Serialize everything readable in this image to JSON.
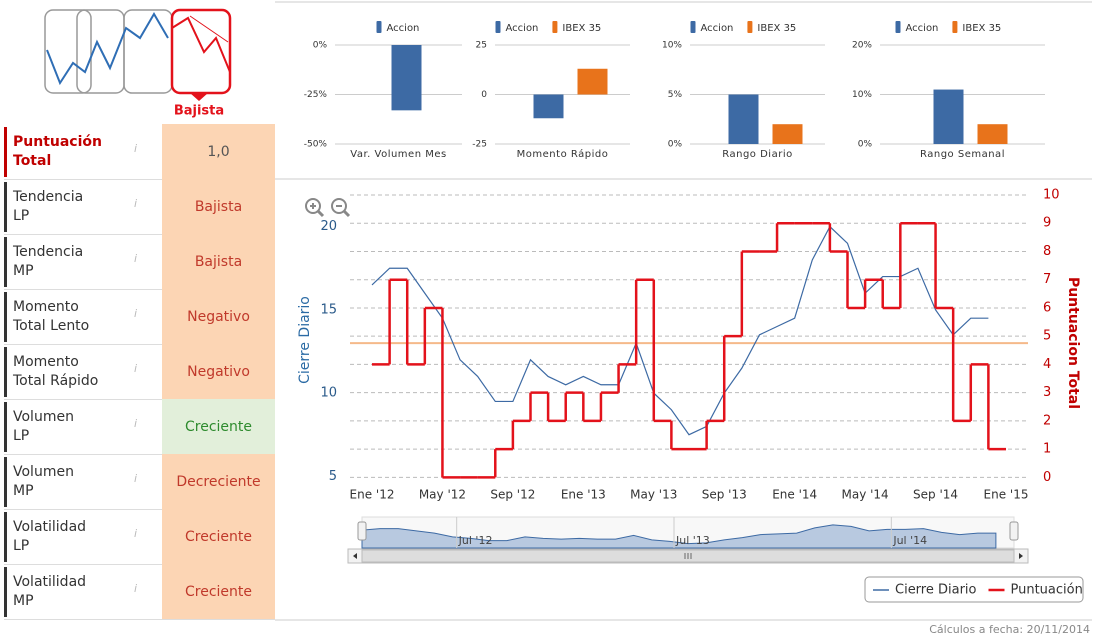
{
  "trend": {
    "label": "Bajista"
  },
  "scores": {
    "rows": [
      {
        "label": "Puntuación\nTotal",
        "value": "1,0",
        "color": "#fcd5b4",
        "label_color": "#c00000",
        "text_color": "#555555"
      },
      {
        "label": "Tendencia\nLP",
        "value": "Bajista",
        "color": "#fcd5b4",
        "label_color": "#333333",
        "text_color": "#c0392b"
      },
      {
        "label": "Tendencia\nMP",
        "value": "Bajista",
        "color": "#fcd5b4",
        "label_color": "#333333",
        "text_color": "#c0392b"
      },
      {
        "label": "Momento\nTotal Lento",
        "value": "Negativo",
        "color": "#fcd5b4",
        "label_color": "#333333",
        "text_color": "#c0392b"
      },
      {
        "label": "Momento\nTotal Rápido",
        "value": "Negativo",
        "color": "#fcd5b4",
        "label_color": "#333333",
        "text_color": "#c0392b"
      },
      {
        "label": "Volumen\nLP",
        "value": "Creciente",
        "color": "#e2efda",
        "label_color": "#333333",
        "text_color": "#2e8b2e"
      },
      {
        "label": "Volumen\nMP",
        "value": "Decreciente",
        "color": "#fcd5b4",
        "label_color": "#333333",
        "text_color": "#c0392b"
      },
      {
        "label": "Volatilidad\nLP",
        "value": "Creciente",
        "color": "#fcd5b4",
        "label_color": "#333333",
        "text_color": "#c0392b"
      },
      {
        "label": "Volatilidad\nMP",
        "value": "Creciente",
        "color": "#fcd5b4",
        "label_color": "#333333",
        "text_color": "#c0392b"
      }
    ]
  },
  "chart_data": [
    {
      "type": "bar",
      "categories": [
        "Var. Volumen Mes"
      ],
      "series": [
        {
          "name": "Accion",
          "color": "#3d6aa4",
          "values": [
            -33
          ]
        }
      ],
      "ylim": [
        -50,
        0
      ],
      "yticks": [
        {
          "value": -50,
          "label": "-50%"
        },
        {
          "value": -25,
          "label": "-25%"
        },
        {
          "value": 0,
          "label": "0%"
        }
      ]
    },
    {
      "type": "bar",
      "categories": [
        "Momento Rápido"
      ],
      "series": [
        {
          "name": "Accion",
          "color": "#3d6aa4",
          "values": [
            -12
          ]
        },
        {
          "name": "IBEX 35",
          "color": "#e8731b",
          "values": [
            13
          ]
        }
      ],
      "ylim": [
        -25,
        25
      ],
      "yticks": [
        -25,
        0,
        25
      ]
    },
    {
      "type": "bar",
      "categories": [
        "Rango Diario"
      ],
      "series": [
        {
          "name": "Accion",
          "color": "#3d6aa4",
          "values": [
            5
          ]
        },
        {
          "name": "IBEX 35",
          "color": "#e8731b",
          "values": [
            2
          ]
        }
      ],
      "ylim": [
        0,
        10
      ],
      "yticks": [
        {
          "value": 0,
          "label": "0%"
        },
        {
          "value": 5,
          "label": "5%"
        },
        {
          "value": 10,
          "label": "10%"
        }
      ]
    },
    {
      "type": "bar",
      "categories": [
        "Rango Semanal"
      ],
      "series": [
        {
          "name": "Accion",
          "color": "#3d6aa4",
          "values": [
            11
          ]
        },
        {
          "name": "IBEX 35",
          "color": "#e8731b",
          "values": [
            4
          ]
        }
      ],
      "ylim": [
        0,
        20
      ],
      "yticks": [
        {
          "value": 0,
          "label": "0%"
        },
        {
          "value": 10,
          "label": "10%"
        },
        {
          "value": 20,
          "label": "20%"
        }
      ]
    },
    {
      "type": "line",
      "y_label": "Cierre Diario",
      "y2_label": "Puntuacion Total",
      "categories": [
        "Ene '12",
        null,
        null,
        null,
        "May '12",
        null,
        null,
        null,
        "Sep '12",
        null,
        null,
        null,
        "Ene '13",
        null,
        null,
        null,
        "May '13",
        null,
        null,
        null,
        "Sep '13",
        null,
        null,
        null,
        "Ene '14",
        null,
        null,
        null,
        "May '14",
        null,
        null,
        null,
        "Sep '14",
        null,
        null,
        null,
        "Ene '15"
      ],
      "series": [
        {
          "name": "Cierre Diario",
          "color": "#3d6aa4",
          "values": [
            16.5,
            17.5,
            17.5,
            16,
            14.5,
            12,
            11,
            9.5,
            9.5,
            12,
            11,
            10.5,
            11,
            10.5,
            10.5,
            13,
            10,
            9,
            7.5,
            8,
            10,
            11.5,
            13.5,
            14,
            14.5,
            18,
            20,
            19,
            16,
            17,
            17,
            17.5,
            15,
            13.5,
            14.5,
            14.5,
            null
          ]
        },
        {
          "name": "Puntuación",
          "color": "#e3121b",
          "axis": "y2",
          "values": [
            4,
            7,
            4,
            6,
            0,
            0,
            0,
            1,
            2,
            3,
            2,
            3,
            2,
            3,
            4,
            7,
            2,
            1,
            1,
            2,
            5,
            8,
            8,
            9,
            9,
            9,
            8,
            6,
            7,
            6,
            9,
            9,
            6,
            2,
            4,
            1,
            null
          ]
        }
      ],
      "reference_line": {
        "value": 13,
        "color": "#f5b98a"
      },
      "ylim": [
        4.6,
        21.9
      ],
      "yticks": [
        5,
        10,
        15,
        20
      ],
      "y2lim": [
        -0.2,
        10
      ],
      "y2ticks": [
        0,
        1,
        2,
        3,
        4,
        5,
        6,
        7,
        8,
        9,
        10
      ],
      "grid": true,
      "navigator_labels": [
        "Jul '12",
        "Jul '13",
        "Jul '14"
      ]
    }
  ],
  "footer": "Cálculos a fecha: 20/11/2014"
}
